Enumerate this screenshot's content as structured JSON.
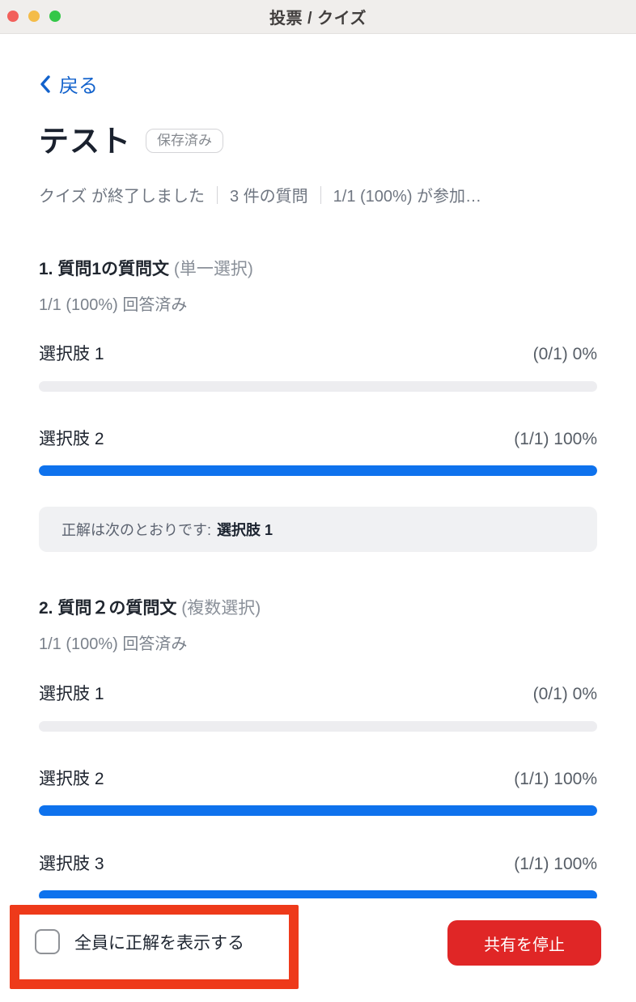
{
  "window": {
    "title": "投票 / クイズ"
  },
  "header": {
    "back_label": "戻る",
    "title": "テスト",
    "saved_badge": "保存済み"
  },
  "status": {
    "ended": "クイズ が終了しました",
    "question_count": "3 件の質問",
    "participation": "1/1 (100%) が参加…"
  },
  "chartish_note_colors": {
    "bar_fill": "#0e72ed",
    "bar_track": "#ededf0",
    "stop_button_red": "#e02626",
    "annotation_red": "#ee3a1a",
    "link_blue": "#1262cc"
  },
  "questions": [
    {
      "title": "1. 質問1の質問文",
      "type": "(単一選択)",
      "answered": "1/1 (100%) 回答済み",
      "options": [
        {
          "label": "選択肢 1",
          "stat": "(0/1) 0%",
          "pct": 0
        },
        {
          "label": "選択肢 2",
          "stat": "(1/1) 100%",
          "pct": 100
        }
      ],
      "correct_prefix": "正解は次のとおりです:",
      "correct_answer": "選択肢 1"
    },
    {
      "title": "2. 質問２の質問文",
      "type": "(複数選択)",
      "answered": "1/1 (100%) 回答済み",
      "options": [
        {
          "label": "選択肢 1",
          "stat": "(0/1) 0%",
          "pct": 0
        },
        {
          "label": "選択肢 2",
          "stat": "(1/1) 100%",
          "pct": 100
        },
        {
          "label": "選択肢 3",
          "stat": "(1/1) 100%",
          "pct": 100
        }
      ]
    }
  ],
  "footer": {
    "checkbox_label": "全員に正解を表示する",
    "stop_button": "共有を停止"
  }
}
